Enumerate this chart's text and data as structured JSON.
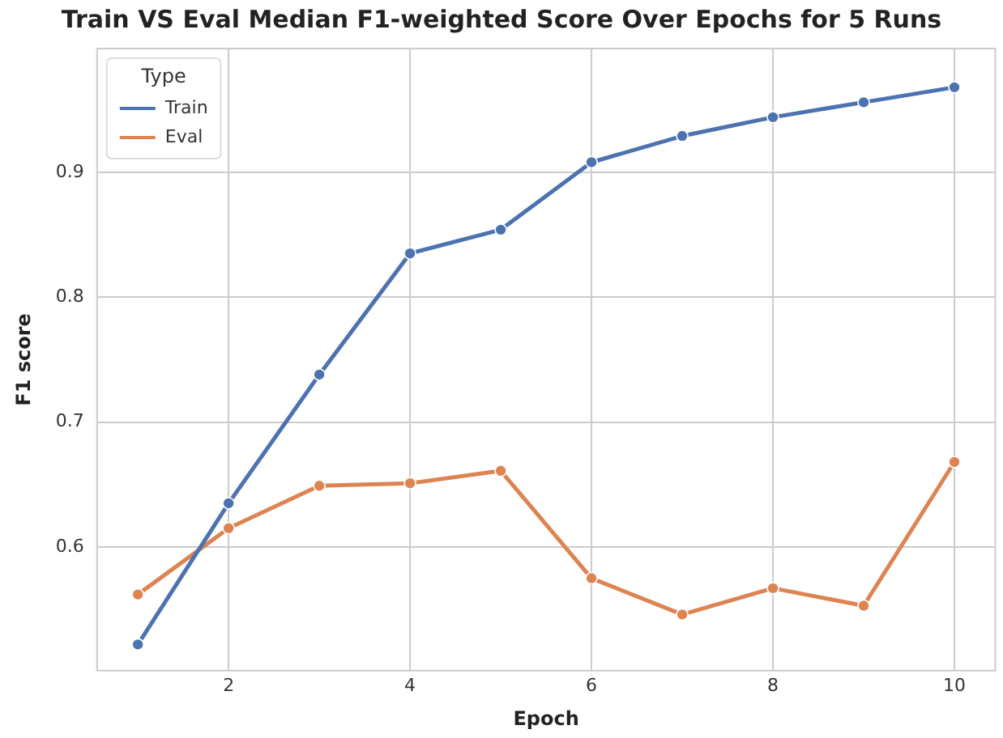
{
  "chart_data": {
    "type": "line",
    "title": "Train VS Eval Median F1-weighted Score Over Epochs for 5 Runs",
    "xlabel": "Epoch",
    "ylabel": "F1 score",
    "legend_title": "Type",
    "x": [
      1,
      2,
      3,
      4,
      5,
      6,
      7,
      8,
      9,
      10
    ],
    "series": [
      {
        "name": "Train",
        "color": "#4c72b0",
        "values": [
          0.522,
          0.635,
          0.738,
          0.835,
          0.854,
          0.908,
          0.929,
          0.944,
          0.956,
          0.968
        ]
      },
      {
        "name": "Eval",
        "color": "#dd8452",
        "values": [
          0.562,
          0.615,
          0.649,
          0.651,
          0.661,
          0.575,
          0.546,
          0.567,
          0.553,
          0.668
        ]
      }
    ],
    "xlim": [
      0.55,
      10.45
    ],
    "xticks": [
      2,
      4,
      6,
      8,
      10
    ],
    "ylim": [
      0.501,
      0.999
    ],
    "yticks": [
      0.6,
      0.7,
      0.8,
      0.9
    ],
    "grid": true,
    "legend": "top left",
    "marker": "circle",
    "line_style": "solid"
  }
}
